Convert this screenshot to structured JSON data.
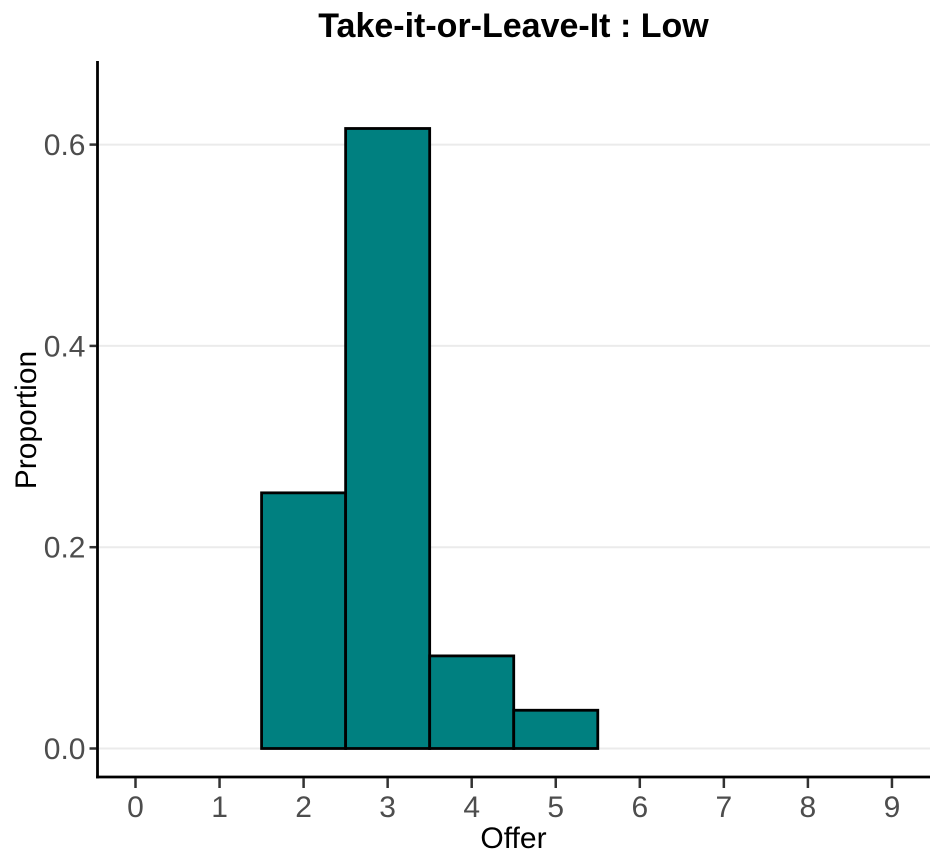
{
  "chart_data": {
    "type": "bar",
    "title": "Take-it-or-Leave-It : Low",
    "xlabel": "Offer",
    "ylabel": "Proportion",
    "categories": [
      2,
      3,
      4,
      5
    ],
    "values": [
      0.254,
      0.616,
      0.092,
      0.038
    ],
    "bar_width": 1,
    "x_ticks": [
      0,
      1,
      2,
      3,
      4,
      5,
      6,
      7,
      8,
      9
    ],
    "x_tick_labels": [
      "0",
      "1",
      "2",
      "3",
      "4",
      "5",
      "6",
      "7",
      "8",
      "9"
    ],
    "y_ticks": [
      0,
      0.2,
      0.4,
      0.6
    ],
    "y_tick_labels": [
      "0.0",
      "0.2",
      "0.4",
      "0.6"
    ],
    "xlim": [
      -0.45,
      9.45
    ],
    "ylim": [
      -0.028,
      0.685
    ],
    "grid": "horizontal-major",
    "legend": "none",
    "colors": {
      "bar_fill": "#008080",
      "bar_stroke": "#000000",
      "axis_line": "#000000",
      "tick_mark": "#333333",
      "tick_label": "#4d4d4d",
      "gridline": "#ebebeb",
      "title_text": "#000000",
      "background": "#ffffff"
    }
  }
}
